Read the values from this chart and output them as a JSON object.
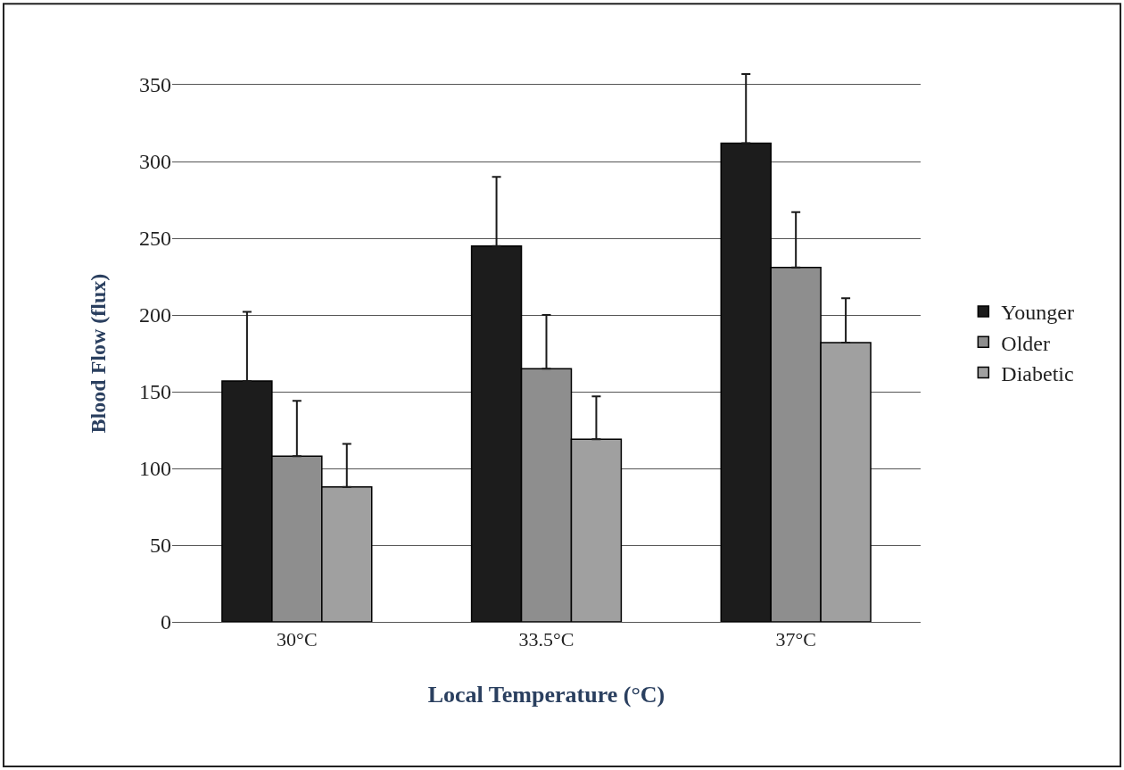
{
  "chart_data": {
    "type": "bar",
    "xlabel": "Local Temperature (°C)",
    "ylabel": "Blood Flow (flux)",
    "categories": [
      "30°C",
      "33.5°C",
      "37°C"
    ],
    "series": [
      {
        "name": "Younger",
        "color": "#1c1c1c",
        "values": [
          157,
          245,
          312
        ],
        "errors": [
          45,
          45,
          45
        ]
      },
      {
        "name": "Older",
        "color": "#8e8e8e",
        "values": [
          108,
          165,
          231
        ],
        "errors": [
          36,
          35,
          36
        ]
      },
      {
        "name": "Diabetic",
        "color": "#a0a0a0",
        "values": [
          88,
          119,
          182
        ],
        "errors": [
          28,
          28,
          29
        ]
      }
    ],
    "ylim": [
      0,
      350
    ],
    "yticks": [
      0,
      50,
      100,
      150,
      200,
      250,
      300,
      350
    ],
    "grid": "y",
    "legend": "right"
  }
}
